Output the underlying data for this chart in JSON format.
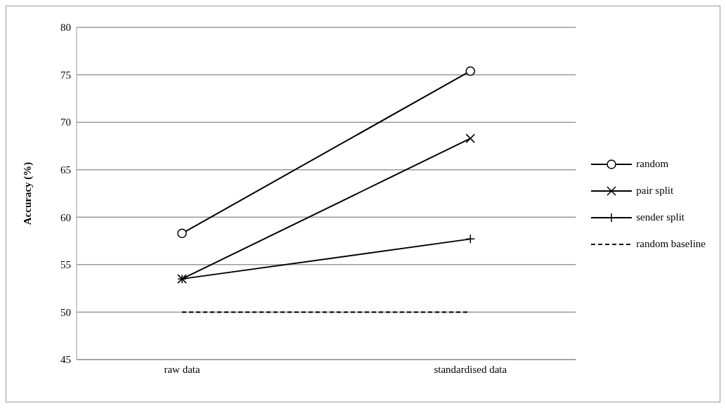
{
  "chart_data": {
    "type": "line",
    "ylabel": "Accuracy (%)",
    "categories": [
      "raw data",
      "standardised data"
    ],
    "series": [
      {
        "name": "random",
        "color": "#000000",
        "values": [
          58.3,
          75.4
        ],
        "marker": "circle",
        "line_style": "solid"
      },
      {
        "name": "pair split",
        "color": "#000000",
        "values": [
          53.5,
          68.3
        ],
        "marker": "x",
        "line_style": "solid"
      },
      {
        "name": "sender split",
        "color": "#000000",
        "values": [
          53.5,
          57.7
        ],
        "marker": "cross",
        "line_style": "solid"
      },
      {
        "name": "random baseline",
        "color": "#000000",
        "values": [
          50,
          50
        ],
        "marker": "none",
        "line_style": "dashed"
      }
    ],
    "ylim": [
      45,
      80
    ],
    "yticks": [
      45,
      50,
      55,
      60,
      65,
      70,
      75,
      80
    ],
    "grid": "y",
    "legend": "right"
  }
}
